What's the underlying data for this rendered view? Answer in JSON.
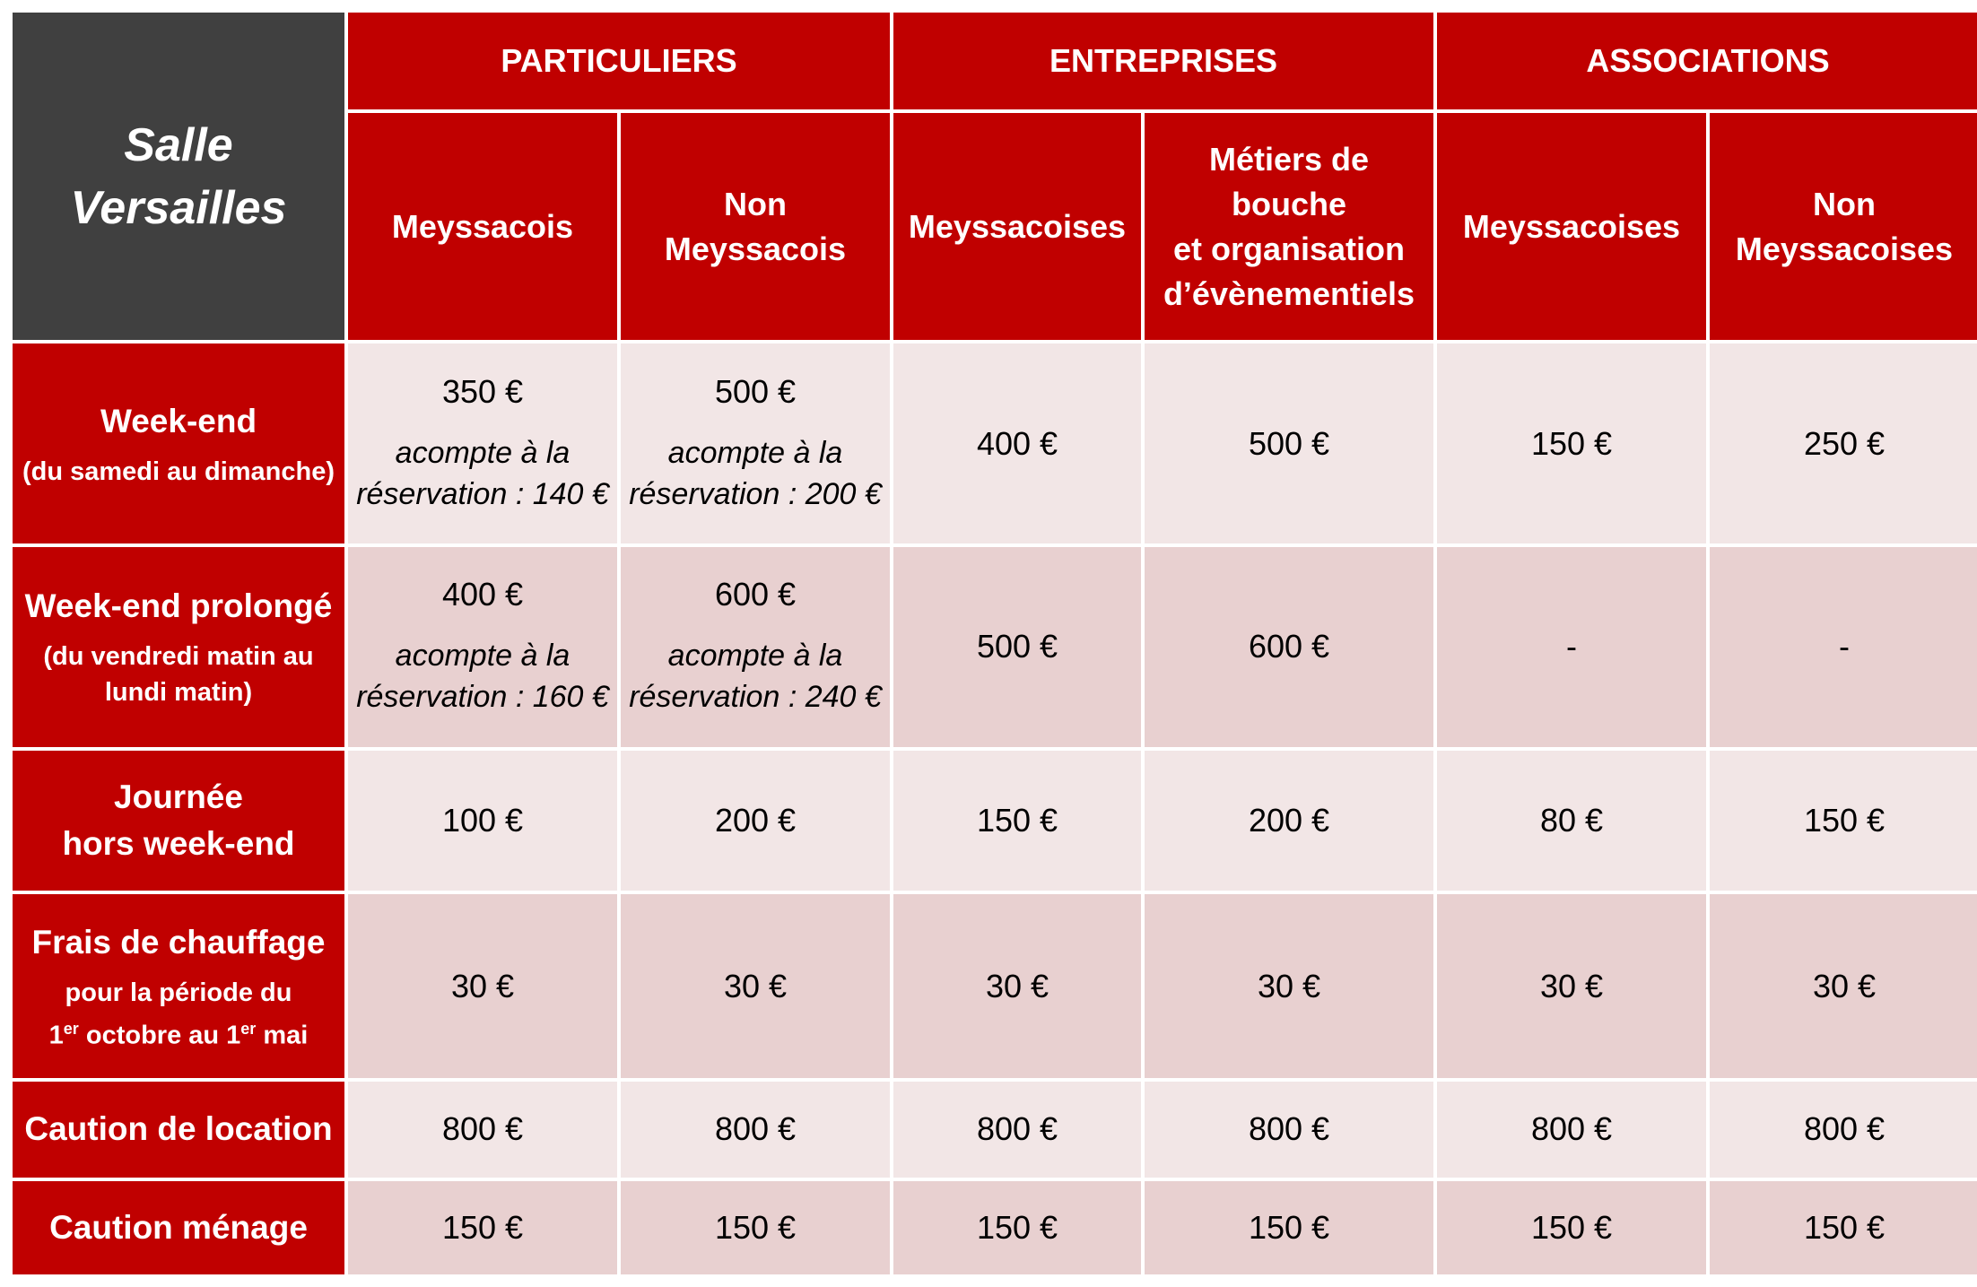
{
  "corner": {
    "line1": "Salle",
    "line2": "Versailles"
  },
  "groups": {
    "particuliers": "PARTICULIERS",
    "entreprises": "ENTREPRISES",
    "associations": "ASSOCIATIONS"
  },
  "columns": {
    "c1": [
      "Meyssacois"
    ],
    "c2": [
      "Non",
      "Meyssacois"
    ],
    "c3": [
      "Meyssacoises"
    ],
    "c4": [
      "Métiers de",
      "bouche",
      "et organisation",
      "d’évènementiels"
    ],
    "c5": [
      "Meyssacoises"
    ],
    "c6": [
      "Non",
      "Meyssacoises"
    ]
  },
  "rows": {
    "weekend": {
      "label": "Week-end",
      "note": "(du samedi au dimanche)",
      "c1": "350 €",
      "c1_deposit": [
        "acompte à la",
        "réservation : 140 €"
      ],
      "c2": "500 €",
      "c2_deposit": [
        "acompte à la",
        "réservation : 200 €"
      ],
      "c3": "400 €",
      "c4": "500 €",
      "c5": "150 €",
      "c6": "250 €"
    },
    "weekend_prolonge": {
      "label": "Week-end prolongé",
      "note": [
        "(du vendredi matin au",
        "lundi matin)"
      ],
      "c1": "400 €",
      "c1_deposit": [
        "acompte à la",
        "réservation : 160 €"
      ],
      "c2": "600 €",
      "c2_deposit": [
        "acompte à la",
        "réservation : 240 €"
      ],
      "c3": "500 €",
      "c4": "600 €",
      "c5": "-",
      "c6": "-"
    },
    "journee": {
      "label": [
        "Journée",
        "hors week-end"
      ],
      "c1": "100 €",
      "c2": "200 €",
      "c3": "150 €",
      "c4": "200 €",
      "c5": "80 €",
      "c6": "150 €"
    },
    "chauffage": {
      "label": "Frais de chauffage",
      "note_line1": "pour la période du",
      "note_1": "1",
      "note_er_a": "er",
      "note_mid": " octobre au 1",
      "note_er_b": "er",
      "note_end": " mai",
      "c1": "30 €",
      "c2": "30 €",
      "c3": "30 €",
      "c4": "30 €",
      "c5": "30 €",
      "c6": "30 €"
    },
    "caution_location": {
      "label": "Caution de location",
      "c1": "800 €",
      "c2": "800 €",
      "c3": "800 €",
      "c4": "800 €",
      "c5": "800 €",
      "c6": "800 €"
    },
    "caution_menage": {
      "label": "Caution ménage",
      "c1": "150 €",
      "c2": "150 €",
      "c3": "150 €",
      "c4": "150 €",
      "c5": "150 €",
      "c6": "150 €"
    }
  },
  "colors": {
    "header_red": "#c00000",
    "corner_grey": "#404040",
    "row_light": "#f2e6e6",
    "row_dark": "#e8d0d0"
  }
}
